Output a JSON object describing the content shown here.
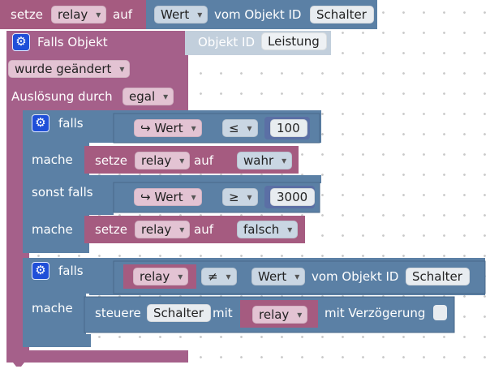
{
  "colors": {
    "variable_block": "#a55b80",
    "logic_block": "#5b80a5",
    "event_block": "#a5608a",
    "field_bg": "#e8e8e8",
    "gear": "#1f4fd8"
  },
  "top_block": {
    "setze_label": "setze",
    "variable": "relay",
    "auf_label": "auf",
    "wert": "Wert",
    "vom_objekt_label": "vom Objekt ID",
    "object_id": "Schalter"
  },
  "trigger": {
    "title": "Falls Objekt",
    "objekt_id_label": "Objekt ID",
    "object_id": "Leistung",
    "condition": "wurde geändert",
    "ausloesung_label": "Auslösung durch",
    "ausloesung_value": "egal",
    "gear_icon": "gear-icon"
  },
  "if_block_1": {
    "falls_label": "falls",
    "cond1": {
      "arrow": "↪",
      "wert": "Wert",
      "operator": "≤",
      "number": "100"
    },
    "mache1_label": "mache",
    "set1": {
      "setze_label": "setze",
      "variable": "relay",
      "auf_label": "auf",
      "value": "wahr"
    },
    "sonst_falls_label": "sonst falls",
    "cond2": {
      "arrow": "↪",
      "wert": "Wert",
      "operator": "≥",
      "number": "3000"
    },
    "mache2_label": "mache",
    "set2": {
      "setze_label": "setze",
      "variable": "relay",
      "auf_label": "auf",
      "value": "falsch"
    }
  },
  "if_block_2": {
    "falls_label": "falls",
    "cond": {
      "variable": "relay",
      "operator": "≠",
      "wert": "Wert",
      "vom_objekt_label": "vom Objekt ID",
      "object_id": "Schalter"
    },
    "mache_label": "mache",
    "control": {
      "steuere_label": "steuere",
      "object_id": "Schalter",
      "mit_label": "mit",
      "variable": "relay",
      "mit_verzoegerung_label": "mit Verzögerung"
    }
  }
}
